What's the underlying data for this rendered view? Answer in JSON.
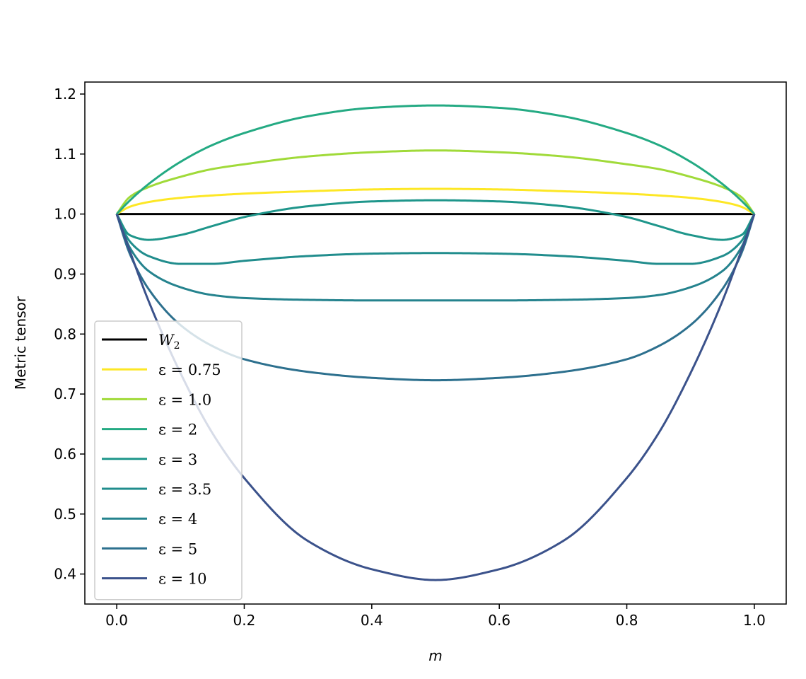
{
  "chart_data": {
    "type": "line",
    "title": "",
    "xlabel": "m",
    "ylabel": "Metric tensor",
    "xlim": [
      -0.05,
      1.05
    ],
    "ylim": [
      0.35,
      1.22
    ],
    "xticks": [
      0.0,
      0.2,
      0.4,
      0.6,
      0.8,
      1.0
    ],
    "xtick_labels": [
      "0.0",
      "0.2",
      "0.4",
      "0.6",
      "0.8",
      "1.0"
    ],
    "yticks": [
      0.4,
      0.5,
      0.6,
      0.7,
      0.8,
      0.9,
      1.0,
      1.1,
      1.2
    ],
    "ytick_labels": [
      "0.4",
      "0.5",
      "0.6",
      "0.7",
      "0.8",
      "0.9",
      "1.0",
      "1.1",
      "1.2"
    ],
    "grid": false,
    "legend_position": "lower-left",
    "x": [
      0.0,
      0.02,
      0.05,
      0.1,
      0.15,
      0.2,
      0.3,
      0.4,
      0.5,
      0.6,
      0.7,
      0.8,
      0.85,
      0.9,
      0.95,
      0.98,
      1.0
    ],
    "series": [
      {
        "name": "W₂",
        "legend_label": "W",
        "legend_sub": "2",
        "color": "#000000",
        "values": [
          1.0,
          1.0,
          1.0,
          1.0,
          1.0,
          1.0,
          1.0,
          1.0,
          1.0,
          1.0,
          1.0,
          1.0,
          1.0,
          1.0,
          1.0,
          1.0,
          1.0
        ]
      },
      {
        "name": "ε = 0.75",
        "legend_label": "ε = 0.75",
        "color": "#fde725",
        "values": [
          1.0,
          1.012,
          1.02,
          1.027,
          1.031,
          1.034,
          1.038,
          1.041,
          1.042,
          1.041,
          1.038,
          1.034,
          1.031,
          1.027,
          1.02,
          1.012,
          1.0
        ]
      },
      {
        "name": "ε = 1.0",
        "legend_label": "ε = 1.0",
        "color": "#a0da39",
        "values": [
          1.0,
          1.028,
          1.045,
          1.062,
          1.075,
          1.083,
          1.096,
          1.103,
          1.106,
          1.103,
          1.096,
          1.083,
          1.075,
          1.062,
          1.045,
          1.028,
          1.0
        ]
      },
      {
        "name": "ε = 2",
        "legend_label": "ε = 2",
        "color": "#24aa83",
        "values": [
          1.0,
          1.022,
          1.05,
          1.087,
          1.115,
          1.135,
          1.163,
          1.177,
          1.181,
          1.177,
          1.163,
          1.135,
          1.115,
          1.087,
          1.05,
          1.022,
          1.0
        ]
      },
      {
        "name": "ε = 3",
        "legend_label": "ε = 3",
        "color": "#1f968b",
        "values": [
          1.0,
          0.965,
          0.957,
          0.965,
          0.98,
          0.995,
          1.013,
          1.021,
          1.023,
          1.021,
          1.013,
          0.995,
          0.98,
          0.965,
          0.957,
          0.965,
          1.0
        ]
      },
      {
        "name": "ε = 3.5",
        "legend_label": "ε = 3.5",
        "color": "#218d8d",
        "values": [
          1.0,
          0.955,
          0.93,
          0.917,
          0.917,
          0.922,
          0.93,
          0.934,
          0.935,
          0.934,
          0.93,
          0.922,
          0.917,
          0.917,
          0.93,
          0.955,
          1.0
        ]
      },
      {
        "name": "ε = 4",
        "legend_label": "ε = 4",
        "color": "#25838e",
        "values": [
          1.0,
          0.945,
          0.905,
          0.878,
          0.865,
          0.86,
          0.857,
          0.856,
          0.856,
          0.856,
          0.857,
          0.86,
          0.865,
          0.878,
          0.905,
          0.945,
          1.0
        ]
      },
      {
        "name": "ε = 5",
        "legend_label": "ε = 5",
        "color": "#2d708e",
        "values": [
          1.0,
          0.935,
          0.875,
          0.815,
          0.78,
          0.758,
          0.737,
          0.727,
          0.723,
          0.727,
          0.737,
          0.758,
          0.78,
          0.815,
          0.875,
          0.935,
          1.0
        ]
      },
      {
        "name": "ε = 10",
        "legend_label": "ε = 10",
        "color": "#3b528b",
        "values": [
          1.0,
          0.94,
          0.855,
          0.735,
          0.635,
          0.56,
          0.455,
          0.408,
          0.39,
          0.408,
          0.455,
          0.56,
          0.635,
          0.735,
          0.855,
          0.94,
          1.0
        ]
      }
    ]
  }
}
